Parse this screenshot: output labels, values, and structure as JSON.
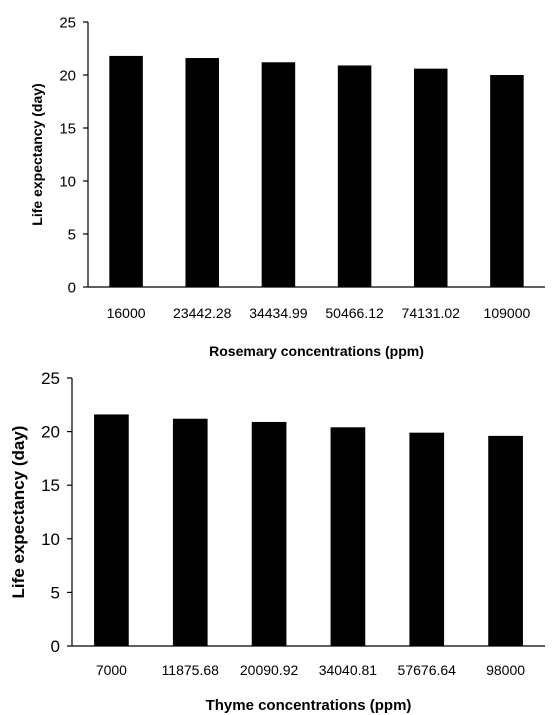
{
  "chart_data": [
    {
      "type": "bar",
      "title": "",
      "xlabel": "Rosemary concentrations (ppm)",
      "ylabel": "Life expectancy (day)",
      "ylim": [
        0,
        25
      ],
      "yticks": [
        "0",
        "5",
        "10",
        "15",
        "20",
        "25"
      ],
      "categories": [
        "16000",
        "23442.28",
        "34434.99",
        "50466.12",
        "74131.02",
        "109000"
      ],
      "values": [
        21.8,
        21.6,
        21.2,
        20.9,
        20.6,
        20.0
      ],
      "bar_color": "#000000",
      "grid": false
    },
    {
      "type": "bar",
      "title": "",
      "xlabel": "Thyme concentrations (ppm)",
      "ylabel": "Life expectancy (day)",
      "ylim": [
        0,
        25
      ],
      "yticks": [
        "0",
        "5",
        "10",
        "15",
        "20",
        "25"
      ],
      "categories": [
        "7000",
        "11875.68",
        "20090.92",
        "34040.81",
        "57676.64",
        "98000"
      ],
      "values": [
        21.6,
        21.2,
        20.9,
        20.4,
        19.9,
        19.6
      ],
      "bar_color": "#000000",
      "grid": false
    }
  ]
}
